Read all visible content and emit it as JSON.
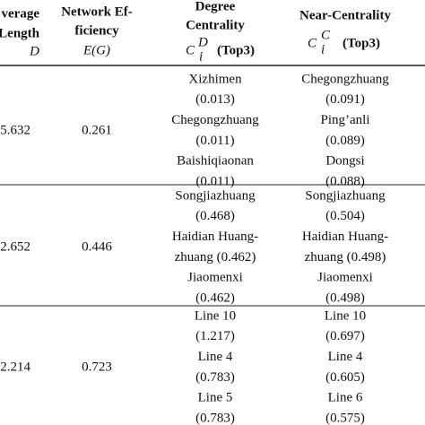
{
  "header": {
    "col1": [
      "verage",
      "Length",
      "D"
    ],
    "col2": [
      "Network Ef-",
      "ficiency",
      "E(G)"
    ],
    "col3": {
      "title": [
        "Degree",
        "Centrality"
      ],
      "symbol": "C",
      "sub": "i",
      "sup": "D",
      "note": "(Top3)"
    },
    "col4": {
      "title": "Near-Centrality",
      "symbol": "C",
      "sub": "i",
      "sup": "C",
      "note": "(Top3)"
    }
  },
  "rows": [
    {
      "length": "5.632",
      "efficiency": "0.261",
      "degree": [
        "Xizhimen",
        "(0.013)",
        "Chegongzhuang",
        "(0.011)",
        "Baishiqiaonan",
        "(0.011)"
      ],
      "near": [
        "Chegongzhuang",
        "(0.091)",
        "Ping’anli",
        "(0.089)",
        "Dongsi",
        "(0.088)"
      ]
    },
    {
      "length": "2.652",
      "efficiency": "0.446",
      "degree": [
        "Songjiazhuang",
        "(0.468)",
        "Haidian Huang-",
        "zhuang (0.462)",
        "Jiaomenxi",
        "(0.462)"
      ],
      "near": [
        "Songjiazhuang",
        "(0.504)",
        "Haidian Huang-",
        "zhuang (0.498)",
        "Jiaomenxi",
        "(0.498)"
      ]
    },
    {
      "length": "2.214",
      "efficiency": "0.723",
      "degree": [
        "Line 10",
        "(1.217)",
        "Line 4",
        "(0.783)",
        "Line 5",
        "(0.783)"
      ],
      "near": [
        "Line 10",
        "(0.697)",
        "Line 4",
        "(0.605)",
        "Line 6",
        "(0.575)"
      ]
    }
  ]
}
